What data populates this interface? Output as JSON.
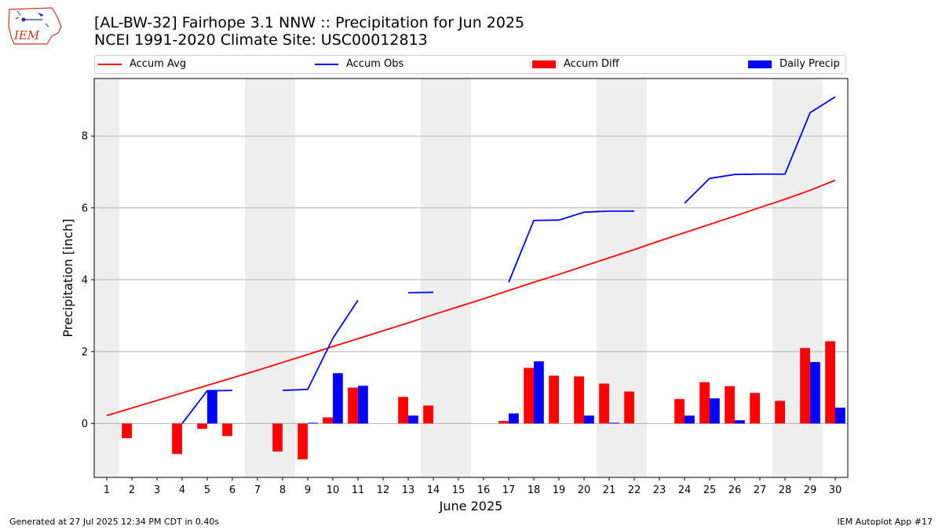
{
  "logo": {
    "text": "IEM"
  },
  "header": {
    "title_line1": "[AL-BW-32] Fairhope 3.1 NNW :: Precipitation for Jun 2025",
    "title_line2": "NCEI 1991-2020 Climate Site: USC00012813"
  },
  "legend": [
    {
      "label": "Accum Avg",
      "kind": "line",
      "color": "#ff0000"
    },
    {
      "label": "Accum Obs",
      "kind": "line",
      "color": "#0000ff"
    },
    {
      "label": "Accum Diff",
      "kind": "patch",
      "color": "#ff0000"
    },
    {
      "label": "Daily Precip",
      "kind": "patch",
      "color": "#0000ff"
    }
  ],
  "footer": {
    "left": "Generated at 27 Jul 2025 12:34 PM CDT in 0.40s",
    "right": "IEM Autoplot App #17"
  },
  "chart_data": {
    "type": "bar",
    "xlabel": "June 2025",
    "ylabel": "Precipitation [inch]",
    "ylim": [
      -1.5,
      9.6
    ],
    "yticks": [
      0,
      2,
      4,
      6,
      8
    ],
    "grid": "horizontal",
    "legend_placement": "top",
    "categories": [
      "1",
      "2",
      "3",
      "4",
      "5",
      "6",
      "7",
      "8",
      "9",
      "10",
      "11",
      "12",
      "13",
      "14",
      "15",
      "16",
      "17",
      "18",
      "19",
      "20",
      "21",
      "22",
      "23",
      "24",
      "25",
      "26",
      "27",
      "28",
      "29",
      "30"
    ],
    "weekend_shading": [
      [
        0.5,
        1.5
      ],
      [
        6.5,
        8.5
      ],
      [
        13.5,
        15.5
      ],
      [
        20.5,
        22.5
      ],
      [
        27.5,
        29.5
      ]
    ],
    "series": [
      {
        "name": "Accum Avg",
        "kind": "line",
        "color": "#ff0000",
        "values": [
          0.22,
          0.43,
          0.64,
          0.85,
          1.06,
          1.27,
          1.48,
          1.7,
          1.92,
          2.14,
          2.36,
          2.58,
          2.8,
          3.03,
          3.25,
          3.47,
          3.7,
          3.93,
          4.15,
          4.38,
          4.61,
          4.84,
          5.08,
          5.31,
          5.54,
          5.77,
          6.01,
          6.24,
          6.49,
          6.77
        ]
      },
      {
        "name": "Accum Obs",
        "kind": "line",
        "color": "#0000ff",
        "values": [
          null,
          null,
          null,
          0.0,
          0.91,
          0.92,
          null,
          0.92,
          0.95,
          2.37,
          3.43,
          null,
          3.64,
          3.65,
          null,
          null,
          3.93,
          5.65,
          5.66,
          5.88,
          5.91,
          5.91,
          null,
          6.13,
          6.82,
          6.93,
          6.94,
          6.94,
          8.65,
          9.09
        ]
      },
      {
        "name": "Accum Diff",
        "kind": "bar",
        "color": "#ff0000",
        "values": [
          0,
          -0.41,
          0,
          -0.85,
          -0.15,
          -0.35,
          0,
          -0.78,
          -1.0,
          0.17,
          1.0,
          0,
          0.74,
          0.5,
          0,
          0,
          0.07,
          1.55,
          1.33,
          1.31,
          1.11,
          0.89,
          0,
          0.68,
          1.15,
          1.04,
          0.85,
          0.63,
          2.1,
          2.29
        ]
      },
      {
        "name": "Daily Precip",
        "kind": "bar",
        "color": "#0000ff",
        "values": [
          0,
          0,
          0,
          0,
          0.93,
          0,
          0,
          0,
          0.02,
          1.4,
          1.05,
          0,
          0.22,
          0,
          0,
          0,
          0.28,
          1.73,
          0,
          0.22,
          0.02,
          0,
          0,
          0.22,
          0.7,
          0.09,
          0,
          0,
          1.71,
          0.44
        ]
      }
    ]
  }
}
